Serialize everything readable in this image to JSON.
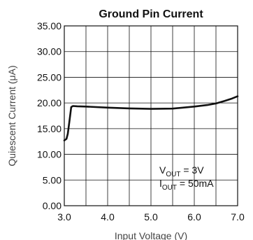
{
  "chart_data": {
    "type": "line",
    "title": "Ground Pin Current",
    "xlabel": "Input Voltage (V)",
    "ylabel": "Quiescent Current (μA)",
    "xlim": [
      3.0,
      7.0
    ],
    "ylim": [
      0,
      35
    ],
    "x_ticks": [
      "3.0",
      "4.0",
      "5.0",
      "6.0",
      "7.0"
    ],
    "y_ticks": [
      "0.00",
      "5.00",
      "10.00",
      "15.00",
      "20.00",
      "25.00",
      "30.00",
      "35.00"
    ],
    "grid": true,
    "series": [
      {
        "x": [
          3.0,
          3.05,
          3.08,
          3.12,
          3.16,
          3.2,
          3.3,
          3.5,
          4.0,
          4.5,
          5.0,
          5.5,
          6.0,
          6.3,
          6.5,
          6.7,
          6.85,
          7.0
        ],
        "y": [
          12.7,
          13.0,
          14.0,
          16.5,
          19.2,
          19.4,
          19.35,
          19.3,
          19.1,
          18.95,
          18.85,
          18.9,
          19.3,
          19.6,
          19.9,
          20.4,
          20.8,
          21.3
        ]
      }
    ],
    "annotation": {
      "line1_prefix": "V",
      "line1_sub": "OUT",
      "line1_suffix": " = 3V",
      "line2_prefix": "I",
      "line2_sub": "OUT",
      "line2_suffix": " = 50mA"
    }
  }
}
